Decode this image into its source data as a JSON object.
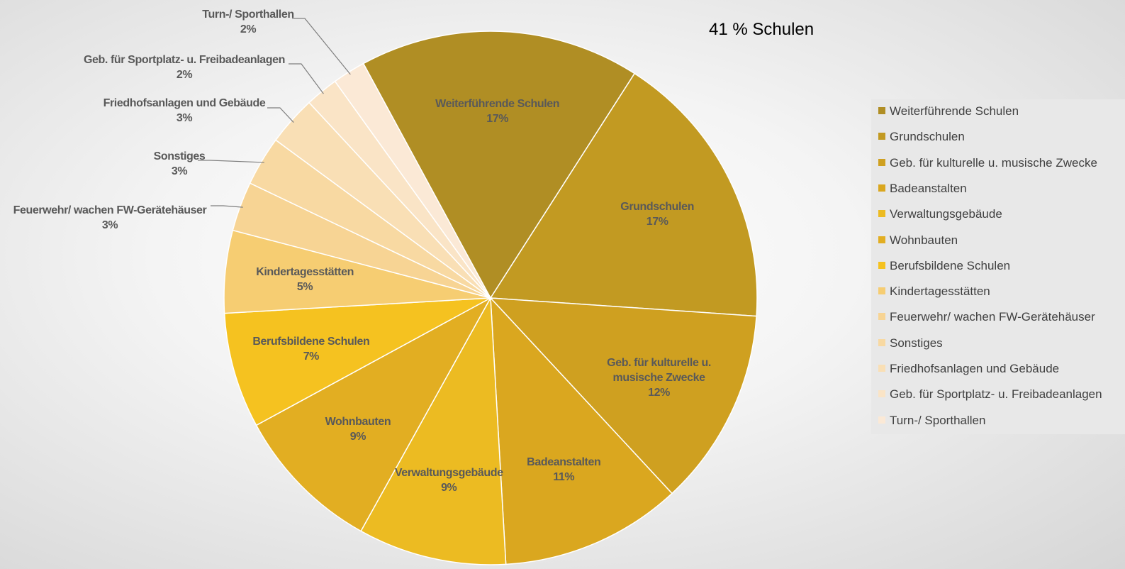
{
  "chart_data": {
    "type": "pie",
    "annotation": "41 % Schulen",
    "categories": [
      "Weiterführende Schulen",
      "Grundschulen",
      "Geb. für kulturelle u. musische Zwecke",
      "Badeanstalten",
      "Verwaltungsgebäude",
      "Wohnbauten",
      "Berufsbildene Schulen",
      "Kindertagesstätten",
      "Feuerwehr/ wachen FW-Gerätehäuser",
      "Sonstiges",
      "Friedhofsanlagen und Gebäude",
      "Geb. für Sportplatz- u. Freibadeanlagen",
      "Turn-/ Sporthallen"
    ],
    "values": [
      17,
      17,
      12,
      11,
      9,
      9,
      7,
      5,
      3,
      3,
      3,
      2,
      2
    ],
    "value_labels": [
      "17%",
      "17%",
      "12%",
      "11%",
      "9%",
      "9%",
      "7%",
      "5%",
      "3%",
      "3%",
      "3%",
      "2%",
      "2%"
    ],
    "colors": [
      "#b08e24",
      "#c29a22",
      "#cfa020",
      "#daa71f",
      "#ecbb22",
      "#e2ae22",
      "#f5c220",
      "#f6cd72",
      "#f7d494",
      "#f8d9a2",
      "#f9dfb5",
      "#fae4c6",
      "#fbe9d6"
    ],
    "legend": "right"
  }
}
